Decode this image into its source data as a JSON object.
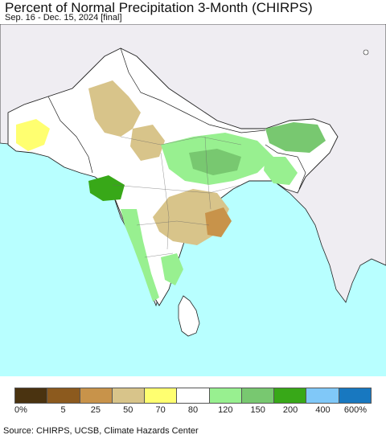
{
  "header": {
    "title": "Percent of Normal Precipitation 3-Month (CHIRPS)",
    "subtitle": "Sep. 16 - Dec. 15, 2024 [final]"
  },
  "legend": {
    "colors": [
      "#4a3310",
      "#8c5a1e",
      "#c8934a",
      "#d8c48a",
      "#ffff70",
      "#ffffff",
      "#98f090",
      "#78c870",
      "#38a818",
      "#80c8f8",
      "#1878c0"
    ],
    "labels": [
      "0%",
      "5",
      "25",
      "50",
      "70",
      "80",
      "120",
      "150",
      "200",
      "400",
      "600%"
    ]
  },
  "source": "Source: CHIRPS, UCSB, Climate Hazards Center"
}
